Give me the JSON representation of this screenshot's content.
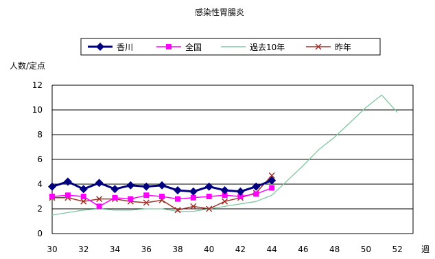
{
  "chart_data": {
    "type": "line",
    "title": "感染性胃腸炎",
    "ylabel": "人数/定点",
    "xlabel": "週",
    "ylim": [
      0,
      12
    ],
    "xlim": [
      30,
      53
    ],
    "yticks": [
      0,
      2,
      4,
      6,
      8,
      10,
      12
    ],
    "xticks": [
      30,
      32,
      34,
      36,
      38,
      40,
      42,
      44,
      46,
      48,
      50,
      52
    ],
    "grid": "horizontal",
    "legend_position": "top",
    "x": [
      30,
      31,
      32,
      33,
      34,
      35,
      36,
      37,
      38,
      39,
      40,
      41,
      42,
      43,
      44,
      45,
      46,
      47,
      48,
      49,
      50,
      51,
      52
    ],
    "series": [
      {
        "name": "香川",
        "color": "#000080",
        "marker": "diamond",
        "values": [
          3.8,
          4.2,
          3.6,
          4.1,
          3.6,
          3.9,
          3.8,
          3.9,
          3.5,
          3.4,
          3.8,
          3.5,
          3.4,
          3.8,
          4.3,
          null,
          null,
          null,
          null,
          null,
          null,
          null,
          null
        ]
      },
      {
        "name": "全国",
        "color": "#ff00ff",
        "marker": "square",
        "values": [
          3.0,
          3.1,
          3.0,
          2.2,
          2.9,
          2.8,
          3.1,
          3.0,
          2.8,
          2.9,
          3.0,
          3.1,
          3.0,
          3.2,
          3.7,
          null,
          null,
          null,
          null,
          null,
          null,
          null,
          null
        ]
      },
      {
        "name": "過去10年",
        "color": "#7fc8a0",
        "marker": "none",
        "values": [
          1.5,
          1.7,
          1.9,
          2.0,
          1.9,
          1.9,
          2.0,
          2.0,
          1.8,
          1.8,
          2.0,
          2.2,
          2.4,
          2.6,
          3.1,
          4.3,
          5.5,
          6.8,
          7.8,
          9.0,
          10.2,
          11.2,
          9.8
        ]
      },
      {
        "name": "昨年",
        "color": "#a0302a",
        "marker": "x",
        "values": [
          2.9,
          2.9,
          2.6,
          2.8,
          2.8,
          2.6,
          2.5,
          2.7,
          1.9,
          2.2,
          2.0,
          2.6,
          2.9,
          3.3,
          4.7,
          null,
          null,
          null,
          null,
          null,
          null,
          null,
          null
        ]
      }
    ]
  }
}
